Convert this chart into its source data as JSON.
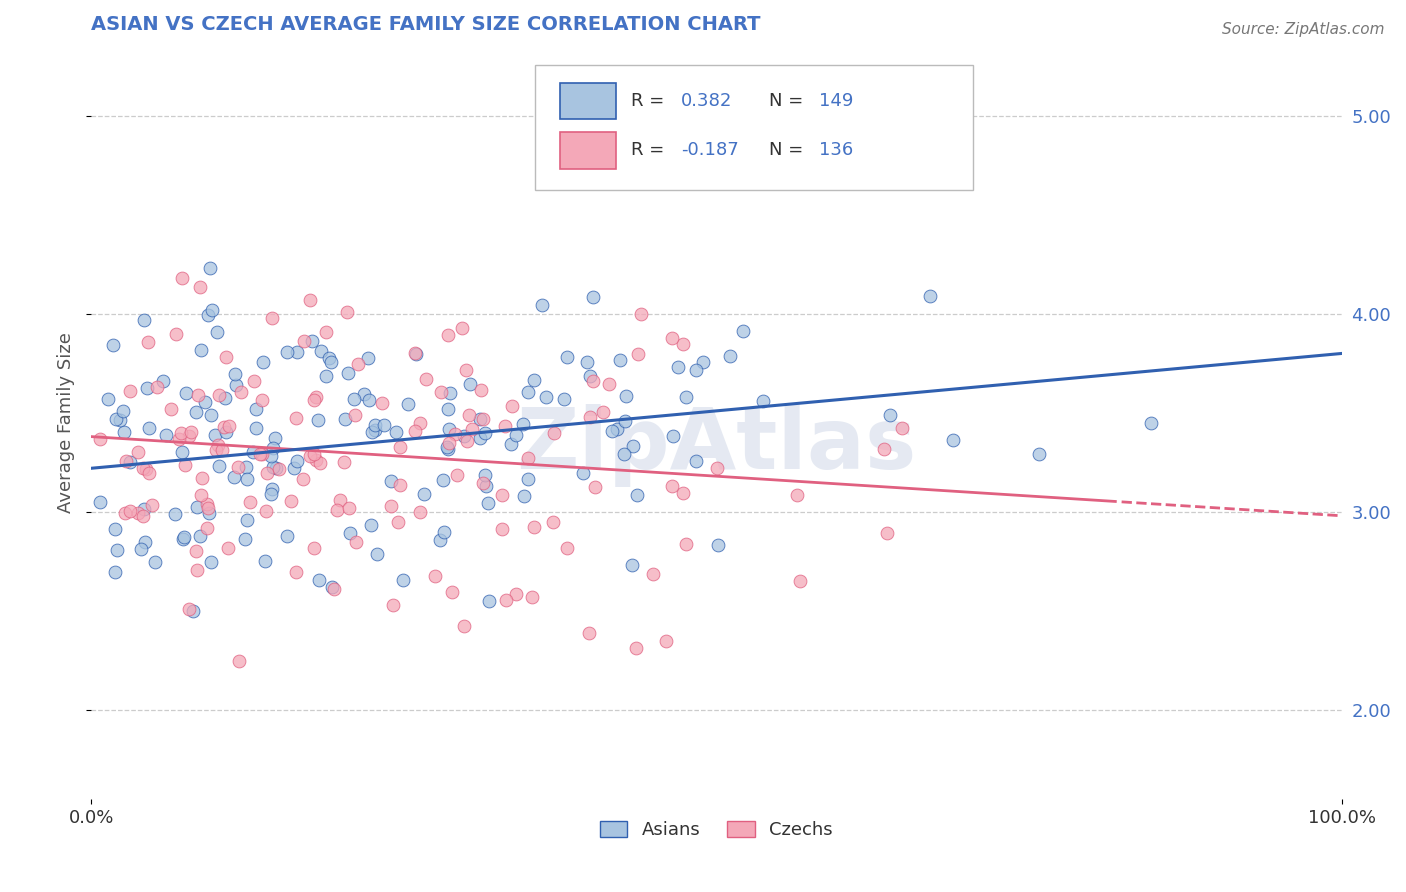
{
  "title": "ASIAN VS CZECH AVERAGE FAMILY SIZE CORRELATION CHART",
  "source": "Source: ZipAtlas.com",
  "ylabel": "Average Family Size",
  "xlim": [
    0,
    1
  ],
  "ylim": [
    1.55,
    5.35
  ],
  "yticks": [
    2.0,
    3.0,
    4.0,
    5.0
  ],
  "xtick_labels": [
    "0.0%",
    "100.0%"
  ],
  "right_ytick_labels": [
    "2.00",
    "3.00",
    "4.00",
    "5.00"
  ],
  "asian_R": 0.382,
  "asian_N": 149,
  "czech_R": -0.187,
  "czech_N": 136,
  "asian_color": "#a8c4e0",
  "czech_color": "#f4a8b8",
  "asian_line_color": "#3060b0",
  "czech_line_color": "#e06080",
  "legend_text_color": "#4472c4",
  "title_color": "#4472c4",
  "watermark": "ZipAtlas",
  "background_color": "#ffffff",
  "grid_color": "#cccccc",
  "asian_scatter_seed": 7,
  "czech_scatter_seed": 13,
  "asian_intercept": 3.22,
  "asian_slope": 0.58,
  "czech_intercept": 3.38,
  "czech_slope": -0.4
}
